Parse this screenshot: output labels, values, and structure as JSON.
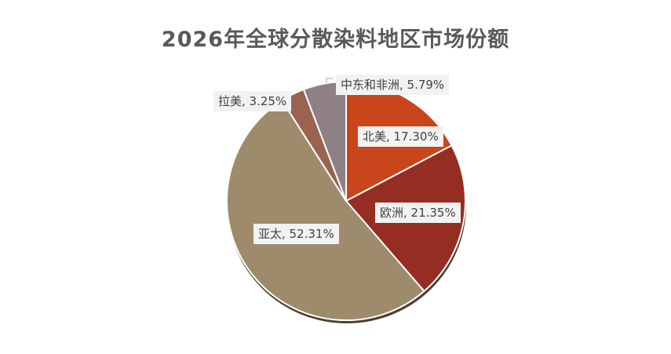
{
  "chart_data": {
    "type": "pie",
    "title": "2026年全球分散染料地区市场份额",
    "slices": [
      {
        "name": "北美",
        "value": 17.3,
        "label": "北美, 17.30%",
        "color": "#c9461c"
      },
      {
        "name": "欧洲",
        "value": 21.35,
        "label": "欧洲, 21.35%",
        "color": "#952d22"
      },
      {
        "name": "亚太",
        "value": 52.31,
        "label": "亚太, 52.31%",
        "color": "#9d8b6c"
      },
      {
        "name": "拉美",
        "value": 3.25,
        "label": "拉美, 3.25%",
        "color": "#9a6350"
      },
      {
        "name": "中东和非洲",
        "value": 5.79,
        "label": "中东和非洲, 5.79%",
        "color": "#8e8085"
      }
    ]
  }
}
